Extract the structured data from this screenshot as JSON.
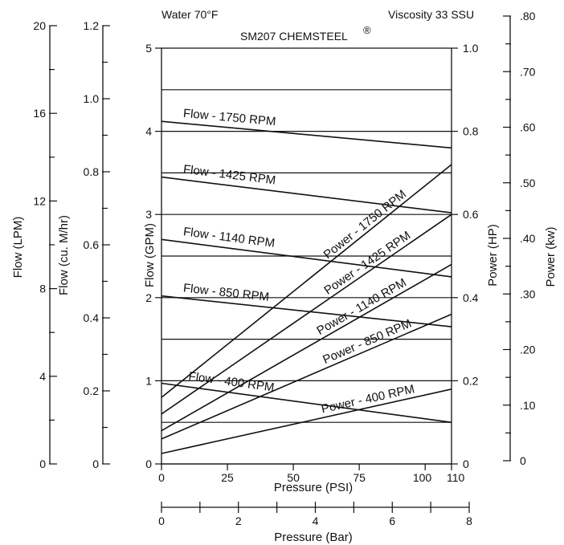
{
  "chart_data": {
    "type": "line",
    "title": "SM207 CHEMSTEEL",
    "title_mark": "®",
    "header_left": "Water 70°F",
    "header_right": "Viscosity 33 SSU",
    "grid": true,
    "x_axis": {
      "label": "Pressure (PSI)",
      "range": [
        0,
        110
      ],
      "ticks": [
        "0",
        "25",
        "50",
        "75",
        "100",
        "110"
      ]
    },
    "x2_axis": {
      "label": "Pressure (Bar)",
      "range": [
        0,
        8
      ],
      "ticks": [
        "0",
        "2",
        "4",
        "6",
        "8"
      ]
    },
    "y_axis": {
      "label": "Flow (GPM)",
      "range": [
        0,
        5
      ],
      "ticks": [
        "0",
        "1",
        "2",
        "3",
        "4",
        "5"
      ]
    },
    "y_right_axis": {
      "label": "Power (HP)",
      "range": [
        0,
        1.0
      ],
      "ticks": [
        "0",
        "0.2",
        "0.4",
        "0.6",
        "0.8",
        "1.0"
      ]
    },
    "y_kw_axis": {
      "label": "Power (kw)",
      "range": [
        0,
        0.8
      ],
      "ticks": [
        "0",
        ".10",
        ".20",
        ".30",
        ".40",
        ".50",
        ".60",
        ".70",
        ".80"
      ]
    },
    "y_lpm_axis": {
      "label": "Flow (LPM)",
      "range": [
        0,
        20
      ],
      "ticks": [
        "0",
        "4",
        "8",
        "12",
        "16",
        "20"
      ]
    },
    "y_m3_axis": {
      "label": "Flow (cu. M/hr)",
      "range": [
        0,
        1.2
      ],
      "ticks": [
        "0",
        "0.2",
        "0.4",
        "0.6",
        "0.8",
        "1.0",
        "1.2"
      ]
    },
    "flow_series": [
      {
        "name": "Flow - 1750 RPM",
        "x": [
          0,
          110
        ],
        "y": [
          4.12,
          3.8
        ]
      },
      {
        "name": "Flow - 1425 RPM",
        "x": [
          0,
          110
        ],
        "y": [
          3.45,
          3.02
        ]
      },
      {
        "name": "Flow - 1140 RPM",
        "x": [
          0,
          110
        ],
        "y": [
          2.7,
          2.25
        ]
      },
      {
        "name": "Flow - 850 RPM",
        "x": [
          0,
          110
        ],
        "y": [
          2.02,
          1.65
        ]
      },
      {
        "name": "Flow - 400 RPM",
        "x": [
          0,
          110
        ],
        "y": [
          0.97,
          0.5
        ]
      }
    ],
    "power_series": [
      {
        "name": "Power - 1750 RPM",
        "x": [
          0,
          110
        ],
        "y": [
          0.16,
          0.72
        ]
      },
      {
        "name": "Power - 1425 RPM",
        "x": [
          0,
          110
        ],
        "y": [
          0.12,
          0.6
        ]
      },
      {
        "name": "Power - 1140 RPM",
        "x": [
          0,
          110
        ],
        "y": [
          0.08,
          0.48
        ]
      },
      {
        "name": "Power - 850 RPM",
        "x": [
          0,
          110
        ],
        "y": [
          0.06,
          0.36
        ]
      },
      {
        "name": "Power - 400 RPM",
        "x": [
          0,
          110
        ],
        "y": [
          0.025,
          0.18
        ]
      }
    ]
  }
}
